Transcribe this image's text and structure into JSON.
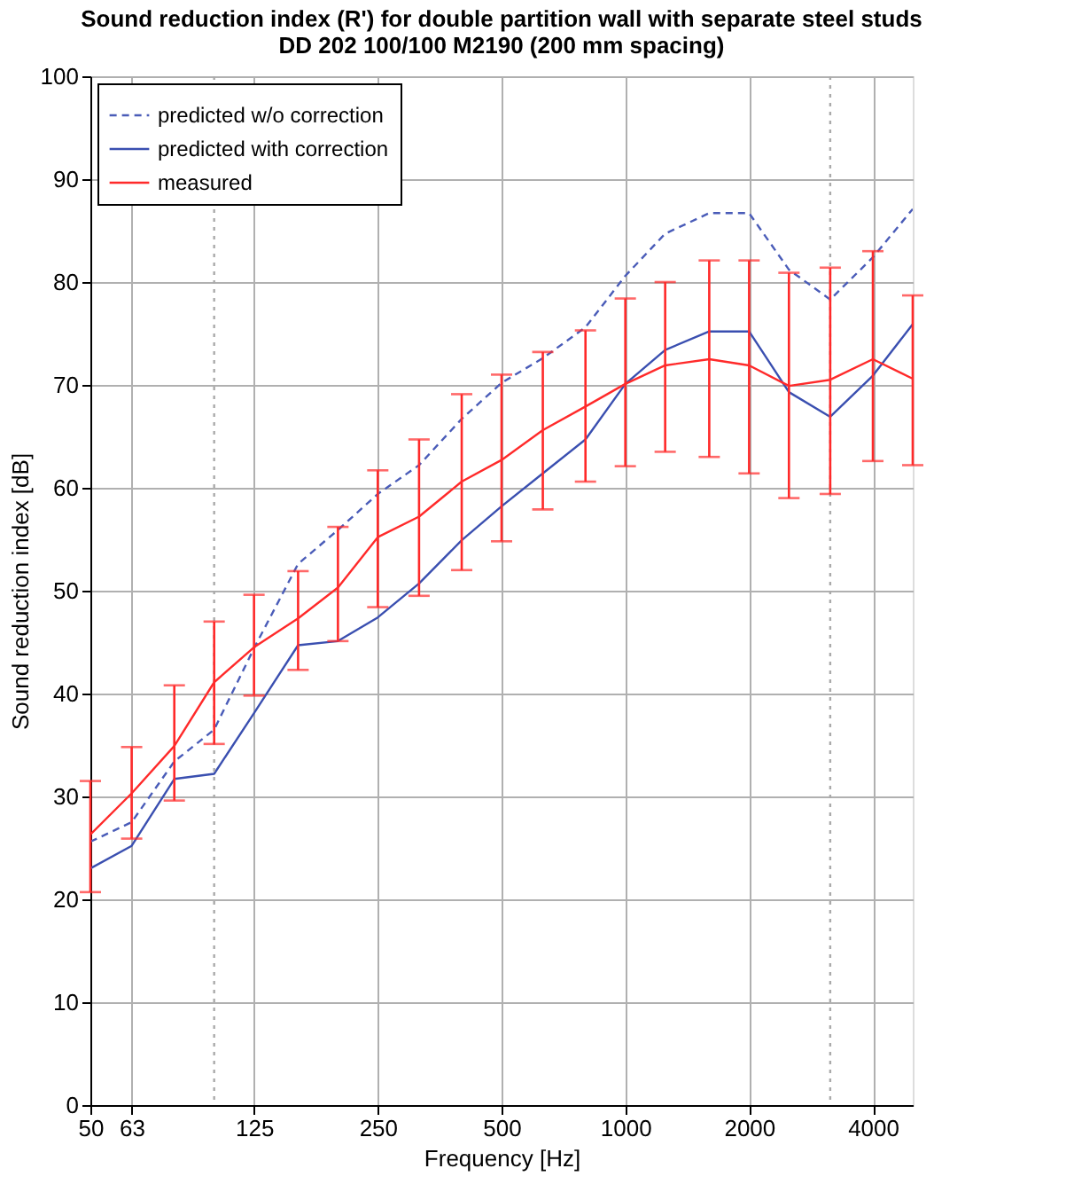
{
  "chart_data": {
    "type": "line",
    "title": "Sound reduction index (R') for double partition wall with separate steel studs\nDD 202 100/100 M2190 (200 mm spacing)",
    "xlabel": "Frequency [Hz]",
    "ylabel": "Sound reduction index [dB]",
    "x": [
      50,
      63,
      80,
      100,
      125,
      160,
      200,
      250,
      315,
      400,
      500,
      630,
      800,
      1000,
      1250,
      1600,
      2000,
      2500,
      3150,
      4000,
      5000
    ],
    "series": [
      {
        "name": "predicted  w/o correction",
        "color": "#4a5cb8",
        "line_style": "dashed",
        "values": [
          25.6,
          27.5,
          33.4,
          36.5,
          44.4,
          52.6,
          55.9,
          59.4,
          62.2,
          66.7,
          70.2,
          72.6,
          75.6,
          80.6,
          84.7,
          86.7,
          86.7,
          81.2,
          78.3,
          82.4,
          87.1
        ]
      },
      {
        "name": "predicted with correction",
        "color": "#3a4fb0",
        "line_style": "solid",
        "values": [
          23.0,
          25.2,
          31.7,
          32.2,
          38.1,
          44.7,
          45.1,
          47.4,
          50.7,
          54.9,
          58.2,
          61.4,
          64.7,
          70.1,
          73.4,
          75.2,
          75.2,
          69.3,
          66.9,
          70.9,
          75.9
        ]
      },
      {
        "name": "measured",
        "color": "#ff2a2a",
        "line_style": "solid",
        "values": [
          26.3,
          30.3,
          34.9,
          41.1,
          44.5,
          47.3,
          50.3,
          55.2,
          57.2,
          60.6,
          62.7,
          65.6,
          67.9,
          70.1,
          71.9,
          72.5,
          71.9,
          69.9,
          70.5,
          72.5,
          70.6
        ],
        "errors": [
          [
            20.7,
            31.5
          ],
          [
            25.9,
            34.8
          ],
          [
            29.6,
            40.8
          ],
          [
            35.1,
            47.0
          ],
          [
            39.8,
            49.6
          ],
          [
            42.3,
            51.9
          ],
          [
            45.1,
            56.2
          ],
          [
            48.4,
            61.7
          ],
          [
            49.5,
            64.7
          ],
          [
            52.0,
            69.1
          ],
          [
            54.8,
            71.0
          ],
          [
            57.9,
            73.2
          ],
          [
            60.6,
            75.3
          ],
          [
            62.1,
            78.4
          ],
          [
            63.5,
            80.0
          ],
          [
            63.0,
            82.1
          ],
          [
            61.4,
            82.1
          ],
          [
            59.0,
            80.9
          ],
          [
            59.4,
            81.4
          ],
          [
            62.6,
            83.0
          ],
          [
            62.2,
            78.7
          ]
        ]
      }
    ],
    "log": "x",
    "xlim": [
      50,
      5000
    ],
    "xticks": [
      50,
      63,
      125,
      250,
      500,
      1000,
      2000,
      4000
    ],
    "ylim": [
      0,
      100
    ],
    "yticks": [
      0,
      10,
      20,
      30,
      40,
      50,
      60,
      70,
      80,
      90,
      100
    ],
    "ref_lines": [
      {
        "axis": "x",
        "value": 100,
        "color": "#aaaaaa",
        "line_style": "dotted"
      },
      {
        "axis": "x",
        "value": 3150,
        "color": "#aaaaaa",
        "line_style": "dotted"
      }
    ],
    "grid": true,
    "legend": "top left"
  }
}
